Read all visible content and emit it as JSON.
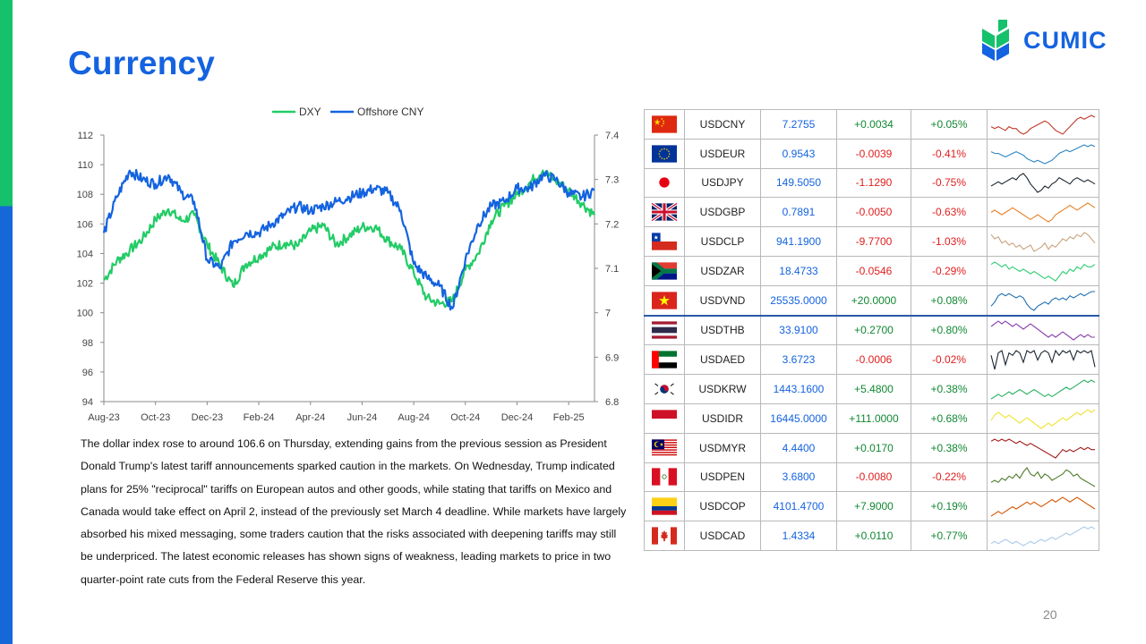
{
  "page": {
    "title": "Currency",
    "page_number": "20"
  },
  "logo": {
    "text": "CUMIC",
    "colors": {
      "green": "#16c16c",
      "blue": "#1463e0"
    }
  },
  "body_text": "The dollar index rose to around 106.6 on Thursday, extending gains from the previous session as President Donald Trump's latest tariff announcements sparked caution in the markets. On Wednesday, Trump indicated plans for 25% \"reciprocal\" tariffs on European autos and other goods, while stating that tariffs on Mexico and Canada would take effect on April 2, instead of the previously set March 4 deadline. While markets have largely absorbed his mixed messaging, some traders caution that the risks associated with deepening tariffs may still be underpriced. The latest economic releases has shown signs of weakness, leading markets to price in two quarter-point rate cuts from the Federal Reserve this year.",
  "chart_data": {
    "type": "line",
    "legend_position": "top-center",
    "grid": false,
    "x_tick_labels": [
      "Aug-23",
      "Oct-23",
      "Dec-23",
      "Feb-24",
      "Apr-24",
      "Jun-24",
      "Aug-24",
      "Oct-24",
      "Dec-24",
      "Feb-25"
    ],
    "x_domain": [
      0,
      19
    ],
    "y_left": {
      "min": 94,
      "max": 112,
      "ticks": [
        "94",
        "96",
        "98",
        "100",
        "102",
        "104",
        "106",
        "108",
        "110",
        "112"
      ]
    },
    "y_right": {
      "min": 6.8,
      "max": 7.4,
      "ticks": [
        "6.8",
        "6.9",
        "7",
        "7.1",
        "7.2",
        "7.3",
        "7.4"
      ]
    },
    "series": [
      {
        "name": "DXY",
        "axis": "left",
        "color": "#22cc66",
        "x": [
          0,
          0.5,
          1,
          1.5,
          2,
          2.5,
          3,
          3.5,
          4,
          4.5,
          5,
          5.5,
          6,
          6.5,
          7,
          7.5,
          8,
          8.5,
          9,
          9.5,
          10,
          10.5,
          11,
          11.5,
          12,
          12.5,
          13,
          13.5,
          14,
          14.5,
          15,
          15.5,
          16,
          16.5,
          17,
          17.5,
          18,
          18.5,
          19
        ],
        "values": [
          102.2,
          103.5,
          104.2,
          105.0,
          106.3,
          107.0,
          106.2,
          106.6,
          104.6,
          103.2,
          101.8,
          103.3,
          103.8,
          104.4,
          104.7,
          104.5,
          105.5,
          105.9,
          104.6,
          105.2,
          105.8,
          105.8,
          104.9,
          104.3,
          102.7,
          101.0,
          100.6,
          100.8,
          102.9,
          104.0,
          106.2,
          107.2,
          108.0,
          108.8,
          109.6,
          108.9,
          108.3,
          107.4,
          106.6
        ]
      },
      {
        "name": "Offshore CNY",
        "axis": "right",
        "color": "#1463e0",
        "x": [
          0,
          0.5,
          1,
          1.5,
          2,
          2.5,
          3,
          3.5,
          4,
          4.5,
          5,
          5.5,
          6,
          6.5,
          7,
          7.5,
          8,
          8.5,
          9,
          9.5,
          10,
          10.5,
          11,
          11.5,
          12,
          12.5,
          13,
          13.5,
          14,
          14.5,
          15,
          15.5,
          16,
          16.5,
          17,
          17.5,
          18,
          18.5,
          19
        ],
        "values": [
          7.18,
          7.26,
          7.32,
          7.3,
          7.29,
          7.31,
          7.27,
          7.25,
          7.12,
          7.1,
          7.16,
          7.18,
          7.18,
          7.2,
          7.22,
          7.24,
          7.23,
          7.24,
          7.25,
          7.26,
          7.27,
          7.28,
          7.27,
          7.23,
          7.11,
          7.08,
          7.06,
          7.01,
          7.12,
          7.2,
          7.24,
          7.25,
          7.28,
          7.28,
          7.31,
          7.3,
          7.27,
          7.26,
          7.2755
        ]
      }
    ]
  },
  "table": {
    "rows": [
      {
        "flag": "cn-flag-icon",
        "pair": "USDCNY",
        "rate": "7.2755",
        "change": "+0.0034",
        "pct": "+0.05%",
        "dir": "pos",
        "spark_color": "#c0392b",
        "spark": [
          6,
          5,
          6,
          5,
          4,
          6,
          5,
          5,
          3,
          2,
          3,
          5,
          6,
          7,
          8,
          9,
          8,
          6,
          4,
          3,
          2,
          4,
          6,
          8,
          10,
          11,
          10,
          11,
          12,
          11
        ]
      },
      {
        "flag": "eu-flag-icon",
        "pair": "USDEUR",
        "rate": "0.9543",
        "change": "-0.0039",
        "pct": "-0.41%",
        "dir": "neg",
        "spark_color": "#2e86c1",
        "spark": [
          8,
          7,
          7,
          6,
          5,
          6,
          7,
          8,
          7,
          6,
          4,
          3,
          2,
          3,
          2,
          1,
          2,
          3,
          5,
          7,
          8,
          9,
          8,
          9,
          10,
          11,
          12,
          11,
          12,
          11
        ]
      },
      {
        "flag": "jp-flag-icon",
        "pair": "USDJPY",
        "rate": "149.5050",
        "change": "-1.1290",
        "pct": "-0.75%",
        "dir": "neg",
        "spark_color": "#1b2631",
        "spark": [
          6,
          7,
          8,
          7,
          8,
          9,
          10,
          9,
          11,
          12,
          10,
          7,
          5,
          3,
          4,
          6,
          5,
          7,
          8,
          10,
          9,
          8,
          7,
          9,
          10,
          9,
          8,
          9,
          8,
          7
        ]
      },
      {
        "flag": "gb-flag-icon",
        "pair": "USDGBP",
        "rate": "0.7891",
        "change": "-0.0050",
        "pct": "-0.63%",
        "dir": "neg",
        "spark_color": "#e67e22",
        "spark": [
          8,
          9,
          8,
          7,
          8,
          9,
          10,
          9,
          8,
          7,
          6,
          5,
          6,
          7,
          6,
          5,
          4,
          5,
          7,
          8,
          9,
          10,
          11,
          10,
          9,
          10,
          11,
          12,
          11,
          10
        ]
      },
      {
        "flag": "cl-flag-icon",
        "pair": "USDCLP",
        "rate": "941.1900",
        "change": "-9.7700",
        "pct": "-1.03%",
        "dir": "neg",
        "spark_color": "#c9a27e",
        "spark": [
          10,
          8,
          9,
          6,
          7,
          5,
          6,
          4,
          5,
          3,
          4,
          5,
          2,
          3,
          4,
          6,
          3,
          5,
          4,
          6,
          8,
          7,
          9,
          8,
          10,
          9,
          11,
          10,
          8,
          6
        ]
      },
      {
        "flag": "za-flag-icon",
        "pair": "USDZAR",
        "rate": "18.4733",
        "change": "-0.0546",
        "pct": "-0.29%",
        "dir": "neg",
        "spark_color": "#2ecc71",
        "spark": [
          9,
          10,
          9,
          8,
          9,
          7,
          8,
          7,
          6,
          7,
          6,
          5,
          6,
          5,
          4,
          3,
          4,
          3,
          2,
          4,
          6,
          5,
          7,
          6,
          8,
          7,
          9,
          8,
          8,
          9
        ]
      },
      {
        "flag": "vn-flag-icon",
        "pair": "USDVND",
        "rate": "25535.0000",
        "change": "+20.0000",
        "pct": "+0.08%",
        "dir": "pos",
        "spark_color": "#1f6fb2",
        "spark": [
          4,
          6,
          9,
          10,
          9,
          10,
          9,
          8,
          9,
          8,
          5,
          3,
          2,
          4,
          5,
          6,
          5,
          7,
          8,
          7,
          8,
          7,
          9,
          8,
          9,
          10,
          9,
          10,
          11,
          11
        ]
      },
      {
        "flag": "th-flag-icon",
        "pair": "USDTHB",
        "rate": "33.9100",
        "change": "+0.2700",
        "pct": "+0.80%",
        "dir": "pos",
        "spark_color": "#8e44ad",
        "spark": [
          9,
          10,
          11,
          10,
          11,
          10,
          9,
          10,
          9,
          8,
          9,
          10,
          9,
          8,
          7,
          6,
          5,
          6,
          5,
          6,
          7,
          6,
          5,
          4,
          5,
          6,
          5,
          6,
          5,
          5
        ]
      },
      {
        "flag": "ae-flag-icon",
        "pair": "USDAED",
        "rate": "3.6723",
        "change": "-0.0006",
        "pct": "-0.02%",
        "dir": "neg",
        "spark_color": "#1b2631",
        "spark": [
          8,
          2,
          9,
          10,
          4,
          9,
          8,
          10,
          9,
          5,
          10,
          9,
          10,
          6,
          9,
          10,
          9,
          5,
          10,
          8,
          10,
          9,
          10,
          6,
          10,
          9,
          10,
          9,
          10,
          3
        ]
      },
      {
        "flag": "kr-flag-icon",
        "pair": "USDKRW",
        "rate": "1443.1600",
        "change": "+5.4800",
        "pct": "+0.38%",
        "dir": "pos",
        "spark_color": "#27ae60",
        "spark": [
          3,
          4,
          5,
          4,
          5,
          6,
          5,
          6,
          7,
          6,
          5,
          6,
          7,
          6,
          5,
          4,
          5,
          4,
          5,
          6,
          7,
          8,
          7,
          8,
          9,
          10,
          11,
          10,
          11,
          10
        ]
      },
      {
        "flag": "id-flag-icon",
        "pair": "USDIDR",
        "rate": "16445.0000",
        "change": "+111.0000",
        "pct": "+0.68%",
        "dir": "pos",
        "spark_color": "#f1e33a",
        "spark": [
          6,
          8,
          9,
          8,
          7,
          8,
          7,
          6,
          5,
          6,
          7,
          6,
          5,
          4,
          3,
          4,
          5,
          4,
          5,
          6,
          7,
          6,
          7,
          8,
          9,
          8,
          9,
          10,
          9,
          10
        ]
      },
      {
        "flag": "my-flag-icon",
        "pair": "USDMYR",
        "rate": "4.4400",
        "change": "+0.0170",
        "pct": "+0.38%",
        "dir": "pos",
        "spark_color": "#a01818",
        "spark": [
          10,
          11,
          10,
          11,
          10,
          11,
          10,
          9,
          10,
          9,
          8,
          9,
          8,
          7,
          6,
          5,
          4,
          3,
          2,
          4,
          6,
          5,
          6,
          5,
          6,
          7,
          6,
          7,
          6,
          6
        ]
      },
      {
        "flag": "pe-flag-icon",
        "pair": "USDPEN",
        "rate": "3.6800",
        "change": "-0.0080",
        "pct": "-0.22%",
        "dir": "neg",
        "spark_color": "#4d7a2a",
        "spark": [
          4,
          5,
          4,
          6,
          5,
          7,
          6,
          8,
          6,
          9,
          11,
          8,
          7,
          9,
          6,
          8,
          7,
          5,
          6,
          7,
          8,
          10,
          9,
          7,
          8,
          6,
          5,
          4,
          3,
          2
        ]
      },
      {
        "flag": "co-flag-icon",
        "pair": "USDCOP",
        "rate": "4101.4700",
        "change": "+7.9000",
        "pct": "+0.19%",
        "dir": "pos",
        "spark_color": "#d35400",
        "spark": [
          3,
          4,
          5,
          4,
          5,
          6,
          7,
          6,
          7,
          8,
          9,
          8,
          9,
          8,
          7,
          8,
          9,
          10,
          9,
          10,
          11,
          10,
          9,
          10,
          11,
          10,
          9,
          8,
          7,
          6
        ]
      },
      {
        "flag": "ca-flag-icon",
        "pair": "USDCAD",
        "rate": "1.4334",
        "change": "+0.0110",
        "pct": "+0.77%",
        "dir": "pos",
        "spark_color": "#a9c8e8",
        "spark": [
          3,
          4,
          3,
          4,
          5,
          4,
          3,
          4,
          3,
          2,
          3,
          4,
          3,
          4,
          5,
          4,
          5,
          6,
          5,
          6,
          7,
          8,
          7,
          8,
          9,
          10,
          11,
          10,
          11,
          10
        ]
      }
    ]
  }
}
